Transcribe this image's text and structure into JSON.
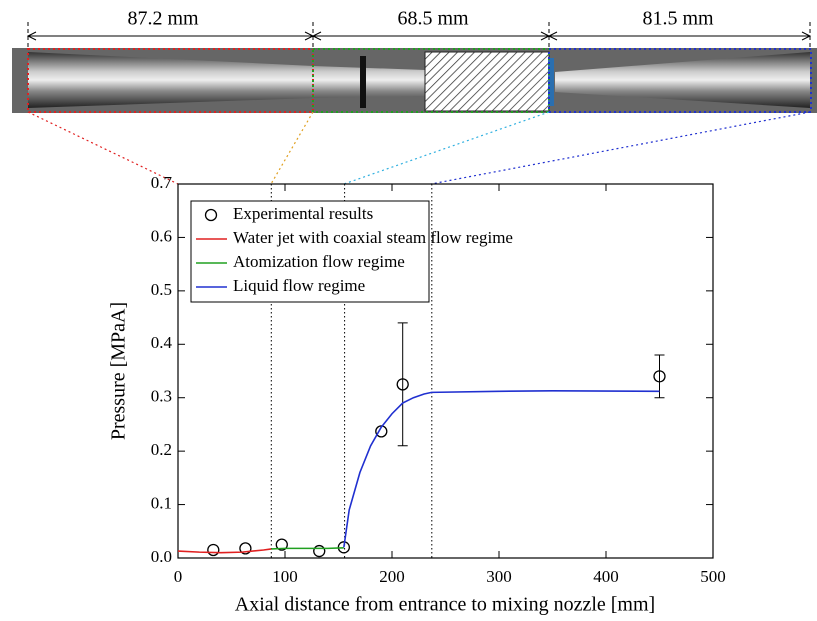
{
  "chart_data": {
    "type": "scatter",
    "x_label": "Axial distance from entrance to mixing nozzle [mm]",
    "y_label": "Pressure [MPaA]",
    "dimensions": [
      "87.2 mm",
      "68.5 mm",
      "81.5 mm"
    ],
    "xlim": [
      0,
      500
    ],
    "ylim": [
      0,
      0.7
    ],
    "xticks": [
      0,
      100,
      200,
      300,
      400,
      500
    ],
    "yticks": [
      {
        "value": 0,
        "label": "0.0"
      },
      0.1,
      0.2,
      0.3,
      0.4,
      0.5,
      0.6,
      0.7
    ],
    "vlines": [
      87.2,
      155.7,
      237.2
    ],
    "series": [
      {
        "name": "Experimental results",
        "type": "scatter",
        "color": "#000000",
        "x": [
          33,
          63,
          97,
          132,
          155,
          190,
          210,
          450
        ],
        "values": [
          0.015,
          0.018,
          0.025,
          0.013,
          0.02,
          0.237,
          0.325,
          0.34
        ],
        "errors": [
          null,
          null,
          null,
          null,
          null,
          null,
          0.115,
          0.04
        ]
      },
      {
        "name": "Water jet with coaxial steam flow regime",
        "type": "line",
        "color": "#e02020",
        "x": [
          0,
          20,
          40,
          60,
          80,
          87.2
        ],
        "values": [
          0.013,
          0.011,
          0.01,
          0.011,
          0.015,
          0.017
        ]
      },
      {
        "name": "Atomization flow regime",
        "type": "line",
        "color": "#20a020",
        "x": [
          87.2,
          100,
          120,
          140,
          155
        ],
        "values": [
          0.017,
          0.018,
          0.018,
          0.018,
          0.019
        ]
      },
      {
        "name": "Liquid flow regime",
        "type": "line",
        "color": "#2030d0",
        "x": [
          155,
          160,
          170,
          180,
          190,
          200,
          210,
          220,
          230,
          237,
          300,
          350,
          450
        ],
        "values": [
          0.02,
          0.09,
          0.16,
          0.21,
          0.245,
          0.27,
          0.29,
          0.3,
          0.307,
          0.31,
          0.312,
          0.313,
          0.312
        ]
      }
    ]
  }
}
